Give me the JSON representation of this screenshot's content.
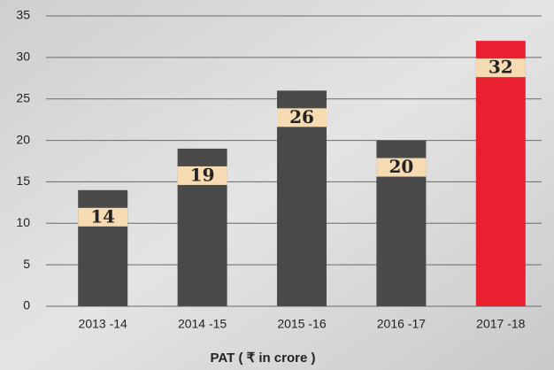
{
  "chart_data": {
    "type": "bar",
    "x_label": "PAT ( ₹ in crore )",
    "categories": [
      "2013 -14",
      "2014 -15",
      "2015 -16",
      "2016 -17",
      "2017 -18"
    ],
    "values": [
      14,
      19,
      26,
      20,
      32
    ],
    "colors": [
      "#4a4a4a",
      "#4a4a4a",
      "#4a4a4a",
      "#4a4a4a",
      "#e8202f"
    ],
    "ylim": [
      0,
      35
    ],
    "yticks": [
      0,
      5,
      10,
      15,
      20,
      25,
      30,
      35
    ],
    "grid": true
  }
}
